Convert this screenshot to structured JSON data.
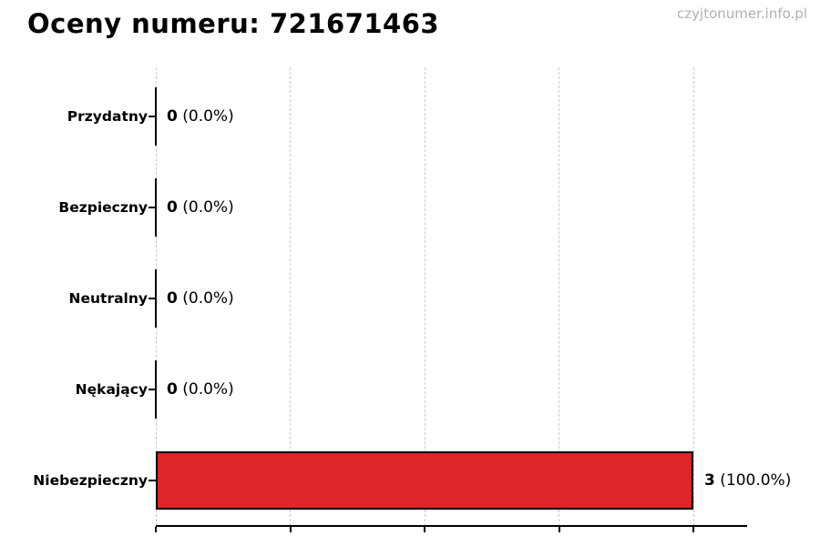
{
  "page": {
    "title": "Oceny numeru: 721671463",
    "watermark": "czyjtonumer.info.pl"
  },
  "colors": {
    "bar_fill": "#dc2627",
    "bar_edge": "#000000",
    "zero_bar": "#000000",
    "grid": "#c9c9c9",
    "axis": "#000000",
    "text": "#000000",
    "watermark": "#b0b0b0",
    "background": "#ffffff"
  },
  "chart_data": {
    "type": "bar",
    "orientation": "horizontal",
    "title": "Oceny numeru: 721671463",
    "categories": [
      "Przydatny",
      "Bezpieczny",
      "Neutralny",
      "Nękający",
      "Niebezpieczny"
    ],
    "values": [
      0,
      0,
      0,
      0,
      3
    ],
    "counts": [
      "0",
      "0",
      "0",
      "0",
      "3"
    ],
    "percent_labels": [
      "(0.0%)",
      "(0.0%)",
      "(0.0%)",
      "(0.0%)",
      "(100.0%)"
    ],
    "value_label_texts": [
      "0 (0.0%)",
      "0 (0.0%)",
      "0 (0.0%)",
      "0 (0.0%)",
      "3 (100.0%)"
    ],
    "xlabel": "",
    "ylabel": "",
    "xlim": [
      0,
      3.3
    ],
    "xticks": [
      0,
      0.75,
      1.5,
      2.25,
      3
    ],
    "xtick_labels_visible": false,
    "grid": "vertical-dashed",
    "legend": "none",
    "bar_color": "#dc2627",
    "bar_edge_color": "#000000"
  }
}
